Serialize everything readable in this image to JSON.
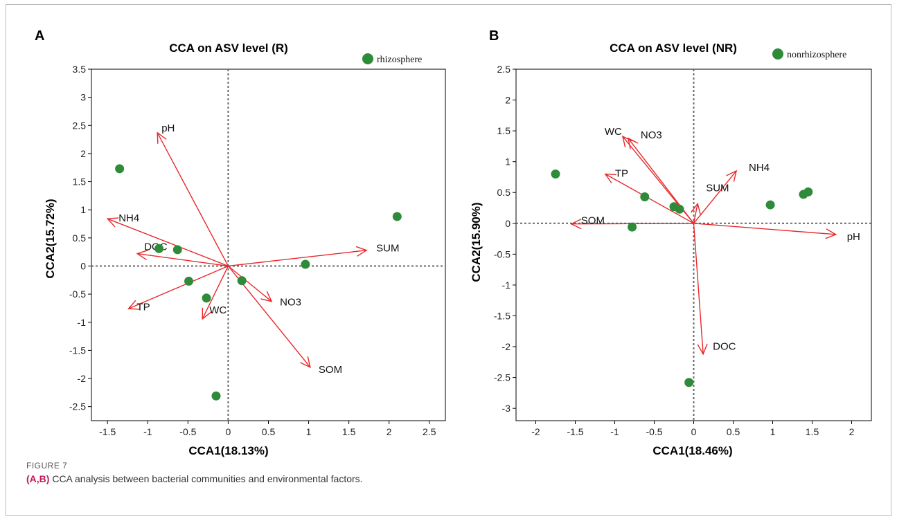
{
  "figure": {
    "caption_label": "FIGURE 7",
    "caption_ref": "(A,B)",
    "caption_text": " CCA analysis between bacterial communities and environmental factors."
  },
  "chart_data": [
    {
      "panel": "A",
      "type": "scatter",
      "title": "CCA on ASV level (R)",
      "xlabel": "CCA1(18.13%)",
      "ylabel": "CCA2(15.72%)",
      "xlim": [
        -1.7,
        2.7
      ],
      "ylim": [
        -2.75,
        3.5
      ],
      "xticks": [
        -1.5,
        -1,
        -0.5,
        0,
        0.5,
        1,
        1.5,
        2,
        2.5
      ],
      "xtick_labels": [
        "-1.5",
        "-1",
        "-0.5",
        "0",
        "0.5",
        "1",
        "1.5",
        "2",
        "2.5"
      ],
      "yticks": [
        -2.5,
        -2,
        -1.5,
        -1,
        -0.5,
        0,
        0.5,
        1,
        1.5,
        2,
        2.5,
        3,
        3.5
      ],
      "ytick_labels": [
        "-2.5",
        "-2",
        "-1.5",
        "-1",
        "-0.5",
        "0",
        "0.5",
        "1",
        "1.5",
        "2",
        "2.5",
        "3",
        "3.5"
      ],
      "grid": false,
      "legend_position": "top-right",
      "series": [
        {
          "name": "rhizosphere",
          "color": "#2e8b3a",
          "points": [
            {
              "x": -1.35,
              "y": 1.73
            },
            {
              "x": -0.86,
              "y": 0.31
            },
            {
              "x": -0.63,
              "y": 0.29
            },
            {
              "x": -0.49,
              "y": -0.27
            },
            {
              "x": -0.27,
              "y": -0.57
            },
            {
              "x": 0.17,
              "y": -0.26
            },
            {
              "x": 0.96,
              "y": 0.03
            },
            {
              "x": 2.1,
              "y": 0.88
            },
            {
              "x": -0.15,
              "y": -2.31
            }
          ]
        }
      ],
      "vectors": [
        {
          "label": "pH",
          "x": -0.88,
          "y": 2.37,
          "lx": -0.88,
          "ly": 2.37
        },
        {
          "label": "NH4",
          "x": -1.5,
          "y": 0.84,
          "lx": -1.5,
          "ly": 0.84
        },
        {
          "label": "DOC",
          "x": -1.13,
          "y": 0.22,
          "lx": -1.13,
          "ly": 0.22
        },
        {
          "label": "TP",
          "x": -1.24,
          "y": -0.76,
          "lx": -1.24,
          "ly": -0.76
        },
        {
          "label": "WC",
          "x": -0.32,
          "y": -0.94,
          "lx": -0.32,
          "ly": -0.94
        },
        {
          "label": "NO3",
          "x": 0.54,
          "y": -0.63,
          "lx": 0.54,
          "ly": -0.63
        },
        {
          "label": "SOM",
          "x": 1.02,
          "y": -1.8,
          "lx": 1.02,
          "ly": -1.8
        },
        {
          "label": "SUM",
          "x": 1.72,
          "y": 0.28,
          "lx": 1.72,
          "ly": 0.28
        }
      ]
    },
    {
      "panel": "B",
      "type": "scatter",
      "title": "CCA on ASV level (NR)",
      "xlabel": "CCA1(18.46%)",
      "ylabel": "CCA2(15.90%)",
      "xlim": [
        -2.25,
        2.25
      ],
      "ylim": [
        -3.2,
        2.5
      ],
      "xticks": [
        -2,
        -1.5,
        -1,
        -0.5,
        0,
        0.5,
        1,
        1.5,
        2
      ],
      "xtick_labels": [
        "-2",
        "-1.5",
        "-1",
        "-0.5",
        "0",
        "0.5",
        "1",
        "1.5",
        "2"
      ],
      "yticks": [
        -3,
        -2.5,
        -2,
        -1.5,
        -1,
        -0.5,
        0,
        0.5,
        1,
        1.5,
        2,
        2.5
      ],
      "ytick_labels": [
        "-3",
        "-2.5",
        "-2",
        "-1.5",
        "-1",
        "-0.5",
        "0",
        "0.5",
        "1",
        "1.5",
        "2",
        "2.5"
      ],
      "grid": false,
      "legend_position": "top-right",
      "series": [
        {
          "name": "nonrhizosphere",
          "color": "#2e8b3a",
          "points": [
            {
              "x": -1.75,
              "y": 0.8
            },
            {
              "x": -0.62,
              "y": 0.43
            },
            {
              "x": -0.78,
              "y": -0.06
            },
            {
              "x": -0.25,
              "y": 0.27
            },
            {
              "x": -0.18,
              "y": 0.23
            },
            {
              "x": 0.97,
              "y": 0.3
            },
            {
              "x": 1.39,
              "y": 0.47
            },
            {
              "x": 1.45,
              "y": 0.51
            },
            {
              "x": -0.06,
              "y": -2.58
            }
          ]
        }
      ],
      "vectors": [
        {
          "label": "WC",
          "x": -0.9,
          "y": 1.41,
          "lx": -0.9,
          "ly": 1.41
        },
        {
          "label": "NO3",
          "x": -0.83,
          "y": 1.38,
          "lx": -0.83,
          "ly": 1.38
        },
        {
          "label": "TP",
          "x": -1.12,
          "y": 0.8,
          "lx": -1.12,
          "ly": 0.8
        },
        {
          "label": "NH4",
          "x": 0.54,
          "y": 0.85,
          "lx": 0.54,
          "ly": 0.85
        },
        {
          "label": "SUM",
          "x": 0.05,
          "y": 0.32,
          "lx": 0.05,
          "ly": 0.32
        },
        {
          "label": "SOM",
          "x": -1.55,
          "y": -0.01,
          "lx": -1.55,
          "ly": -0.01
        },
        {
          "label": "pH",
          "x": 1.8,
          "y": -0.18,
          "lx": 1.8,
          "ly": -0.18
        },
        {
          "label": "DOC",
          "x": 0.12,
          "y": -2.12,
          "lx": 0.12,
          "ly": -2.12
        }
      ]
    }
  ]
}
